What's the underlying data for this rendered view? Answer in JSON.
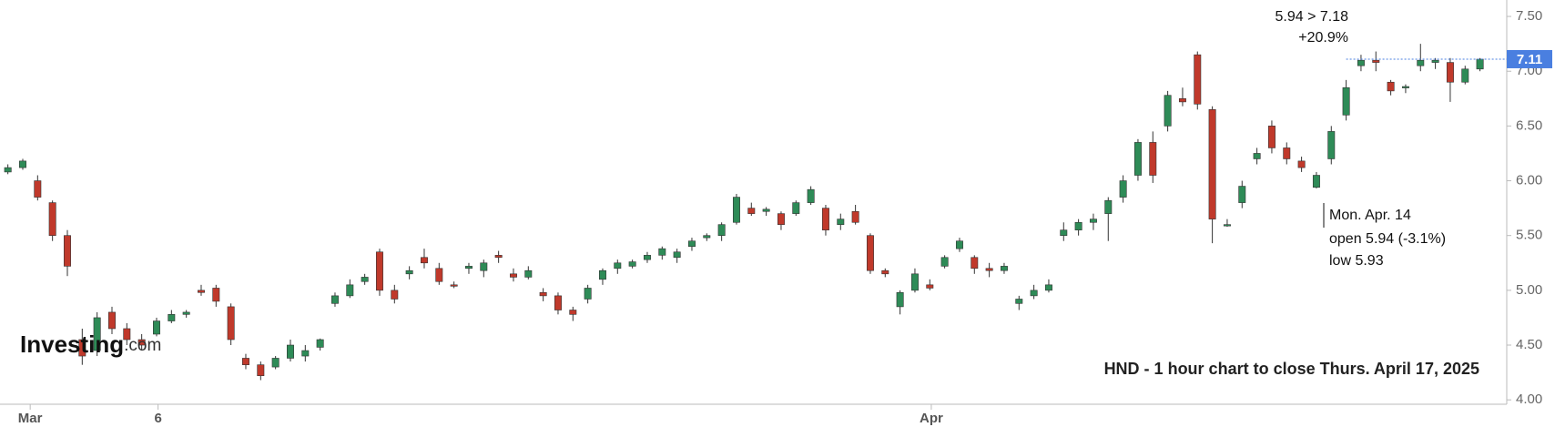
{
  "chart_data": {
    "type": "candlestick",
    "caption": "HND - 1 hour chart to close Thurs. April 17, 2025",
    "logo": {
      "name": "Investing",
      "suffix": ".com"
    },
    "annotations": [
      "5.94 > 7.18",
      "+20.9%"
    ],
    "callout": [
      "Mon. Apr. 14",
      "open 5.94 (-3.1%)",
      "low 5.93"
    ],
    "up_color": "#2e8b57",
    "down_color": "#c0392b",
    "last_color": "#4a7fe0",
    "last": 7.11,
    "open": [
      6.08,
      6.12,
      6.0,
      5.8,
      5.5,
      4.55,
      4.45,
      4.8,
      4.65,
      4.55,
      4.6,
      4.72,
      4.78,
      5.0,
      5.02,
      4.85,
      4.38,
      4.32,
      4.3,
      4.38,
      4.4,
      4.48,
      4.88,
      4.95,
      5.08,
      5.35,
      5.0,
      5.15,
      5.3,
      5.2,
      5.05,
      5.2,
      5.18,
      5.32,
      5.15,
      5.12,
      4.98,
      4.95,
      4.82,
      4.92,
      5.1,
      5.2,
      5.22,
      5.28,
      5.32,
      5.3,
      5.4,
      5.48,
      5.5,
      5.62,
      5.75,
      5.72,
      5.7,
      5.7,
      5.8,
      5.75,
      5.6,
      5.72,
      5.5,
      5.18,
      4.85,
      5.0,
      5.05,
      5.22,
      5.38,
      5.3,
      5.2,
      5.18,
      4.88,
      4.95,
      5.0,
      5.5,
      5.55,
      5.62,
      5.7,
      5.85,
      6.05,
      6.35,
      6.5,
      6.75,
      7.15,
      6.65,
      5.6,
      5.8,
      6.2,
      6.5,
      6.3,
      6.18,
      5.94,
      6.2,
      6.6,
      7.05,
      7.1,
      6.9,
      6.85,
      7.05,
      7.08,
      7.08,
      6.9,
      7.02
    ],
    "high": [
      6.15,
      6.2,
      6.05,
      5.82,
      5.55,
      4.65,
      4.8,
      4.85,
      4.7,
      4.6,
      4.75,
      4.82,
      4.82,
      5.05,
      5.05,
      4.88,
      4.42,
      4.35,
      4.4,
      4.55,
      4.5,
      4.56,
      4.98,
      5.1,
      5.15,
      5.38,
      5.05,
      5.22,
      5.38,
      5.25,
      5.08,
      5.25,
      5.28,
      5.36,
      5.2,
      5.22,
      5.02,
      4.98,
      4.85,
      5.05,
      5.2,
      5.28,
      5.28,
      5.35,
      5.4,
      5.38,
      5.48,
      5.52,
      5.62,
      5.88,
      5.8,
      5.76,
      5.72,
      5.82,
      5.95,
      5.78,
      5.7,
      5.78,
      5.52,
      5.2,
      5.0,
      5.2,
      5.1,
      5.32,
      5.48,
      5.32,
      5.25,
      5.25,
      4.95,
      5.05,
      5.1,
      5.62,
      5.65,
      5.7,
      5.85,
      6.05,
      6.38,
      6.45,
      6.82,
      6.85,
      7.18,
      6.68,
      5.65,
      6.0,
      6.3,
      6.55,
      6.35,
      6.22,
      6.08,
      6.5,
      6.92,
      7.15,
      7.18,
      6.92,
      6.88,
      7.25,
      7.12,
      7.12,
      7.05,
      7.12
    ],
    "low": [
      6.06,
      6.1,
      5.82,
      5.45,
      5.13,
      4.32,
      4.4,
      4.6,
      4.5,
      4.45,
      4.58,
      4.7,
      4.75,
      4.95,
      4.85,
      4.5,
      4.28,
      4.18,
      4.28,
      4.35,
      4.35,
      4.45,
      4.85,
      4.93,
      5.05,
      4.95,
      4.88,
      5.1,
      5.2,
      5.05,
      5.02,
      5.15,
      5.12,
      5.25,
      5.08,
      5.1,
      4.9,
      4.78,
      4.72,
      4.88,
      5.05,
      5.15,
      5.2,
      5.25,
      5.28,
      5.25,
      5.36,
      5.45,
      5.45,
      5.6,
      5.68,
      5.68,
      5.55,
      5.68,
      5.78,
      5.5,
      5.55,
      5.6,
      5.15,
      5.12,
      4.78,
      4.98,
      5.0,
      5.2,
      5.35,
      5.15,
      5.12,
      5.15,
      4.82,
      4.92,
      4.98,
      5.45,
      5.5,
      5.55,
      5.45,
      5.8,
      6.0,
      5.98,
      6.45,
      6.68,
      6.65,
      5.43,
      5.58,
      5.75,
      6.15,
      6.25,
      6.15,
      6.08,
      5.93,
      6.15,
      6.55,
      7.0,
      7.0,
      6.78,
      6.8,
      7.0,
      7.02,
      6.72,
      6.88,
      7.0
    ],
    "close": [
      6.12,
      6.18,
      5.85,
      5.5,
      5.22,
      4.4,
      4.75,
      4.65,
      4.55,
      4.5,
      4.72,
      4.78,
      4.8,
      4.98,
      4.9,
      4.55,
      4.32,
      4.22,
      4.38,
      4.5,
      4.45,
      4.55,
      4.95,
      5.05,
      5.12,
      5.0,
      4.92,
      5.18,
      5.25,
      5.08,
      5.04,
      5.22,
      5.25,
      5.3,
      5.12,
      5.18,
      4.95,
      4.82,
      4.78,
      5.02,
      5.18,
      5.25,
      5.26,
      5.32,
      5.38,
      5.35,
      5.45,
      5.5,
      5.6,
      5.85,
      5.7,
      5.74,
      5.6,
      5.8,
      5.92,
      5.55,
      5.65,
      5.62,
      5.18,
      5.15,
      4.98,
      5.15,
      5.02,
      5.3,
      5.45,
      5.2,
      5.18,
      5.22,
      4.92,
      5.0,
      5.05,
      5.55,
      5.62,
      5.65,
      5.82,
      6.0,
      6.35,
      6.05,
      6.78,
      6.72,
      6.7,
      5.65,
      5.6,
      5.95,
      6.25,
      6.3,
      6.2,
      6.12,
      6.05,
      6.45,
      6.85,
      7.1,
      7.08,
      6.82,
      6.86,
      7.1,
      7.1,
      6.9,
      7.02,
      7.11
    ],
    "xlim": [
      -0.53,
      100.8
    ],
    "xticks": [
      {
        "value": 1.5,
        "label": "Mar"
      },
      {
        "value": 10.1,
        "label": "6"
      },
      {
        "value": 62.1,
        "label": "Apr"
      }
    ],
    "ylim": [
      3.96,
      7.65
    ],
    "yticks": [
      {
        "value": 4,
        "label": "4.00"
      },
      {
        "value": 4.5,
        "label": "4.50"
      },
      {
        "value": 5,
        "label": "5.00"
      },
      {
        "value": 5.5,
        "label": "5.50"
      },
      {
        "value": 6,
        "label": "6.00"
      },
      {
        "value": 6.5,
        "label": "6.50"
      },
      {
        "value": 7,
        "label": "7.00"
      },
      {
        "value": 7.5,
        "label": "7.50"
      }
    ]
  }
}
